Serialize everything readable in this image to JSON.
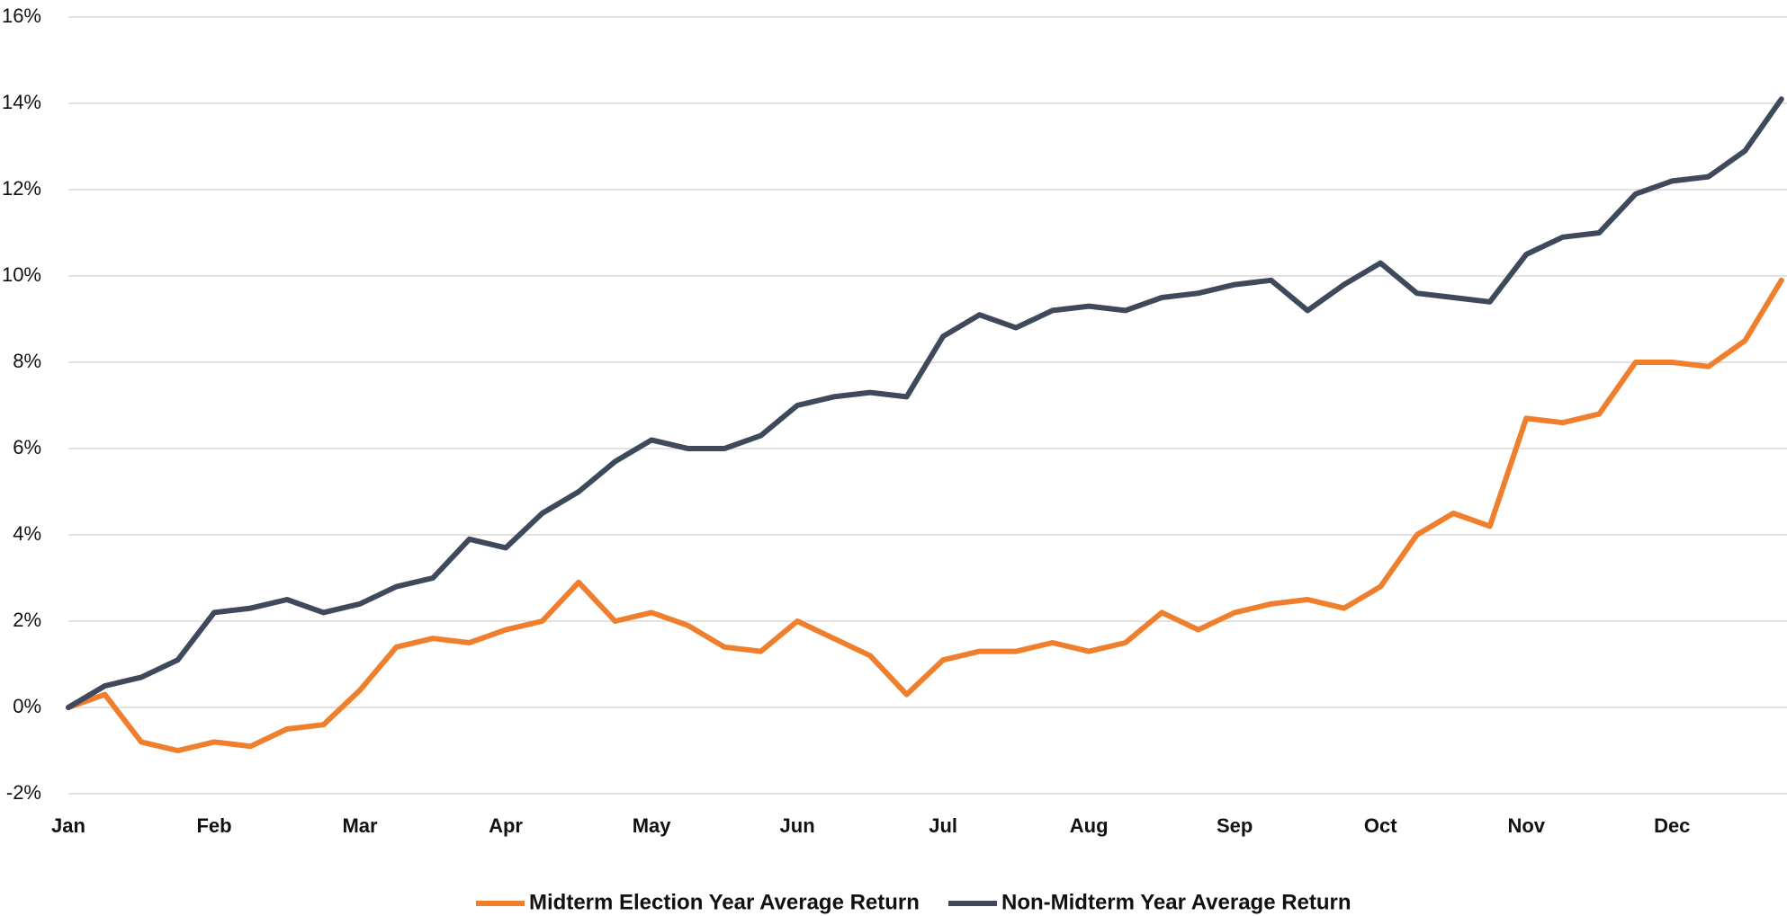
{
  "chart_data": {
    "type": "line",
    "x": [
      0,
      0.25,
      0.5,
      0.75,
      1,
      1.25,
      1.5,
      1.75,
      2,
      2.25,
      2.5,
      2.75,
      3,
      3.25,
      3.5,
      3.75,
      4,
      4.25,
      4.5,
      4.75,
      5,
      5.25,
      5.5,
      5.75,
      6,
      6.25,
      6.5,
      6.75,
      7,
      7.25,
      7.5,
      7.75,
      8,
      8.25,
      8.5,
      8.75,
      9,
      9.25,
      9.5,
      9.75,
      10,
      10.25,
      10.5,
      10.75,
      11,
      11.25,
      11.5,
      11.75
    ],
    "series": [
      {
        "name": "Midterm Election Year Average Return",
        "color": "#f07f2d",
        "values": [
          0,
          0.3,
          -0.8,
          -1.0,
          -0.8,
          -0.9,
          -0.5,
          -0.4,
          0.4,
          1.4,
          1.6,
          1.5,
          1.8,
          2.0,
          2.9,
          2.0,
          2.2,
          1.9,
          1.4,
          1.3,
          2.0,
          1.6,
          1.2,
          0.3,
          1.1,
          1.3,
          1.3,
          1.5,
          1.3,
          1.5,
          2.2,
          1.8,
          2.2,
          2.4,
          2.5,
          2.3,
          2.8,
          4.0,
          4.5,
          4.2,
          6.7,
          6.6,
          6.8,
          8.0,
          8.0,
          7.9,
          8.5,
          9.9
        ]
      },
      {
        "name": "Non-Midterm Year Average Return",
        "color": "#3e4a5c",
        "values": [
          0,
          0.5,
          0.7,
          1.1,
          2.2,
          2.3,
          2.5,
          2.2,
          2.4,
          2.8,
          3.0,
          3.9,
          3.7,
          4.5,
          5.0,
          5.7,
          6.2,
          6.0,
          6.0,
          6.3,
          7.0,
          7.2,
          7.3,
          7.2,
          8.6,
          9.1,
          8.8,
          9.2,
          9.3,
          9.2,
          9.5,
          9.6,
          9.8,
          9.9,
          9.2,
          9.8,
          10.3,
          9.6,
          9.5,
          9.4,
          10.5,
          10.9,
          11.0,
          11.9,
          12.2,
          12.3,
          12.9,
          14.1
        ]
      }
    ],
    "xlim": [
      0,
      11.77
    ],
    "xticks": [
      {
        "value": 0,
        "label": "Jan"
      },
      {
        "value": 1,
        "label": "Feb"
      },
      {
        "value": 2,
        "label": "Mar"
      },
      {
        "value": 3,
        "label": "Apr"
      },
      {
        "value": 4,
        "label": "May"
      },
      {
        "value": 5,
        "label": "Jun"
      },
      {
        "value": 6,
        "label": "Jul"
      },
      {
        "value": 7,
        "label": "Aug"
      },
      {
        "value": 8,
        "label": "Sep"
      },
      {
        "value": 9,
        "label": "Oct"
      },
      {
        "value": 10,
        "label": "Nov"
      },
      {
        "value": 11,
        "label": "Dec"
      }
    ],
    "ylim": [
      -2,
      16
    ],
    "yticks": [
      {
        "value": -2,
        "label": "-2%"
      },
      {
        "value": 0,
        "label": "0%"
      },
      {
        "value": 2,
        "label": "2%"
      },
      {
        "value": 4,
        "label": "4%"
      },
      {
        "value": 6,
        "label": "6%"
      },
      {
        "value": 8,
        "label": "8%"
      },
      {
        "value": 10,
        "label": "10%"
      },
      {
        "value": 12,
        "label": "12%"
      },
      {
        "value": 14,
        "label": "14%"
      },
      {
        "value": 16,
        "label": "16%"
      }
    ],
    "grid": true,
    "legend": "bottom"
  }
}
